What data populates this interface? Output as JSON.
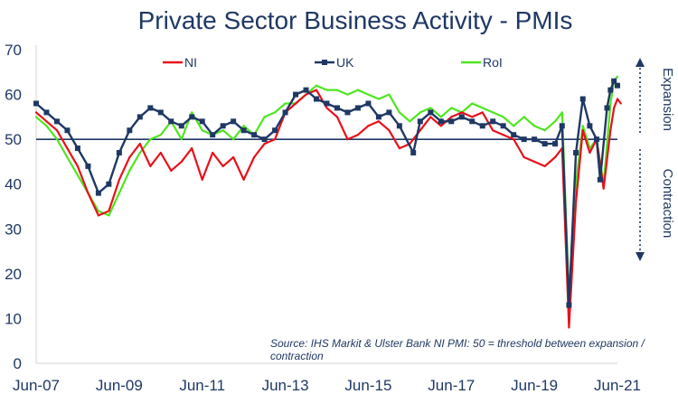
{
  "chart_data": {
    "type": "line",
    "title": "Private Sector Business Activity - PMIs",
    "xlabel": "",
    "ylabel": "",
    "ylim": [
      0,
      70
    ],
    "yticks": [
      0,
      10,
      20,
      30,
      40,
      50,
      60,
      70
    ],
    "x_tick_labels": [
      "Jun-07",
      "Jun-09",
      "Jun-11",
      "Jun-13",
      "Jun-15",
      "Jun-17",
      "Jun-19",
      "Jun-21"
    ],
    "x_range": [
      "Jun-07",
      "Jun-21"
    ],
    "threshold": 50,
    "grid": false,
    "legend_position": "top",
    "series": [
      {
        "name": "NI",
        "color": "#e8101a",
        "marker": "none",
        "points": [
          [
            "Jun-07",
            56
          ],
          [
            "Sep-07",
            54
          ],
          [
            "Dec-07",
            52
          ],
          [
            "Mar-08",
            48
          ],
          [
            "Jun-08",
            44
          ],
          [
            "Sep-08",
            38
          ],
          [
            "Dec-08",
            33
          ],
          [
            "Mar-09",
            34
          ],
          [
            "Jun-09",
            41
          ],
          [
            "Sep-09",
            46
          ],
          [
            "Dec-09",
            49
          ],
          [
            "Mar-10",
            44
          ],
          [
            "Jun-10",
            47
          ],
          [
            "Sep-10",
            43
          ],
          [
            "Dec-10",
            45
          ],
          [
            "Mar-11",
            48
          ],
          [
            "Jun-11",
            41
          ],
          [
            "Sep-11",
            47
          ],
          [
            "Dec-11",
            44
          ],
          [
            "Mar-12",
            46
          ],
          [
            "Jun-12",
            41
          ],
          [
            "Sep-12",
            46
          ],
          [
            "Dec-12",
            49
          ],
          [
            "Mar-13",
            50
          ],
          [
            "Jun-13",
            56
          ],
          [
            "Sep-13",
            58
          ],
          [
            "Dec-13",
            60
          ],
          [
            "Mar-14",
            61
          ],
          [
            "Jun-14",
            57
          ],
          [
            "Sep-14",
            55
          ],
          [
            "Dec-14",
            50
          ],
          [
            "Mar-15",
            51
          ],
          [
            "Jun-15",
            53
          ],
          [
            "Sep-15",
            54
          ],
          [
            "Dec-15",
            52
          ],
          [
            "Mar-16",
            48
          ],
          [
            "Jun-16",
            49
          ],
          [
            "Sep-16",
            52
          ],
          [
            "Dec-16",
            55
          ],
          [
            "Mar-17",
            53
          ],
          [
            "Jun-17",
            55
          ],
          [
            "Sep-17",
            56
          ],
          [
            "Dec-17",
            55
          ],
          [
            "Mar-18",
            56
          ],
          [
            "Jun-18",
            52
          ],
          [
            "Sep-18",
            51
          ],
          [
            "Dec-18",
            50
          ],
          [
            "Mar-19",
            46
          ],
          [
            "Jun-19",
            45
          ],
          [
            "Sep-19",
            44
          ],
          [
            "Dec-19",
            46
          ],
          [
            "Feb-20",
            48
          ],
          [
            "Apr-20",
            8
          ],
          [
            "Jun-20",
            36
          ],
          [
            "Aug-20",
            52
          ],
          [
            "Oct-20",
            47
          ],
          [
            "Dec-20",
            50
          ],
          [
            "Feb-21",
            39
          ],
          [
            "Apr-21",
            52
          ],
          [
            "May-21",
            57
          ],
          [
            "Jun-21",
            59
          ],
          [
            "Jul-21",
            58
          ]
        ]
      },
      {
        "name": "UK",
        "color": "#1f3864",
        "marker": "square",
        "points": [
          [
            "Jun-07",
            58
          ],
          [
            "Sep-07",
            56
          ],
          [
            "Dec-07",
            54
          ],
          [
            "Mar-08",
            52
          ],
          [
            "Jun-08",
            48
          ],
          [
            "Sep-08",
            44
          ],
          [
            "Dec-08",
            38
          ],
          [
            "Mar-09",
            40
          ],
          [
            "Jun-09",
            47
          ],
          [
            "Sep-09",
            52
          ],
          [
            "Dec-09",
            55
          ],
          [
            "Mar-10",
            57
          ],
          [
            "Jun-10",
            56
          ],
          [
            "Sep-10",
            54
          ],
          [
            "Dec-10",
            53
          ],
          [
            "Mar-11",
            55
          ],
          [
            "Jun-11",
            54
          ],
          [
            "Sep-11",
            51
          ],
          [
            "Dec-11",
            53
          ],
          [
            "Mar-12",
            54
          ],
          [
            "Jun-12",
            52
          ],
          [
            "Sep-12",
            51
          ],
          [
            "Dec-12",
            50
          ],
          [
            "Mar-13",
            52
          ],
          [
            "Jun-13",
            56
          ],
          [
            "Sep-13",
            60
          ],
          [
            "Dec-13",
            61
          ],
          [
            "Mar-14",
            59
          ],
          [
            "Jun-14",
            58
          ],
          [
            "Sep-14",
            57
          ],
          [
            "Dec-14",
            56
          ],
          [
            "Mar-15",
            57
          ],
          [
            "Jun-15",
            58
          ],
          [
            "Sep-15",
            55
          ],
          [
            "Dec-15",
            56
          ],
          [
            "Mar-16",
            53
          ],
          [
            "Jul-16",
            47
          ],
          [
            "Sep-16",
            54
          ],
          [
            "Dec-16",
            56
          ],
          [
            "Mar-17",
            54
          ],
          [
            "Jun-17",
            54
          ],
          [
            "Sep-17",
            55
          ],
          [
            "Dec-17",
            54
          ],
          [
            "Mar-18",
            53
          ],
          [
            "Jun-18",
            54
          ],
          [
            "Sep-18",
            53
          ],
          [
            "Dec-18",
            51
          ],
          [
            "Mar-19",
            50
          ],
          [
            "Jun-19",
            50
          ],
          [
            "Sep-19",
            49
          ],
          [
            "Dec-19",
            49
          ],
          [
            "Feb-20",
            53
          ],
          [
            "Apr-20",
            13
          ],
          [
            "Jun-20",
            47
          ],
          [
            "Aug-20",
            59
          ],
          [
            "Oct-20",
            53
          ],
          [
            "Dec-20",
            50
          ],
          [
            "Jan-21",
            41
          ],
          [
            "Mar-21",
            57
          ],
          [
            "Apr-21",
            61
          ],
          [
            "May-21",
            63
          ],
          [
            "Jun-21",
            62
          ]
        ]
      },
      {
        "name": "RoI",
        "color": "#4ee61e",
        "marker": "none",
        "points": [
          [
            "Jun-07",
            55
          ],
          [
            "Sep-07",
            53
          ],
          [
            "Dec-07",
            50
          ],
          [
            "Mar-08",
            46
          ],
          [
            "Jun-08",
            42
          ],
          [
            "Sep-08",
            38
          ],
          [
            "Dec-08",
            34
          ],
          [
            "Mar-09",
            33
          ],
          [
            "Jun-09",
            38
          ],
          [
            "Sep-09",
            43
          ],
          [
            "Dec-09",
            47
          ],
          [
            "Mar-10",
            50
          ],
          [
            "Jun-10",
            51
          ],
          [
            "Sep-10",
            54
          ],
          [
            "Dec-10",
            50
          ],
          [
            "Mar-11",
            56
          ],
          [
            "Jun-11",
            52
          ],
          [
            "Sep-11",
            51
          ],
          [
            "Dec-11",
            52
          ],
          [
            "Mar-12",
            50
          ],
          [
            "Jun-12",
            53
          ],
          [
            "Sep-12",
            51
          ],
          [
            "Dec-12",
            55
          ],
          [
            "Mar-13",
            56
          ],
          [
            "Jun-13",
            58
          ],
          [
            "Sep-13",
            58
          ],
          [
            "Dec-13",
            60
          ],
          [
            "Mar-14",
            62
          ],
          [
            "Jun-14",
            61
          ],
          [
            "Sep-14",
            61
          ],
          [
            "Dec-14",
            60
          ],
          [
            "Mar-15",
            61
          ],
          [
            "Jun-15",
            60
          ],
          [
            "Sep-15",
            59
          ],
          [
            "Dec-15",
            60
          ],
          [
            "Mar-16",
            56
          ],
          [
            "Jun-16",
            54
          ],
          [
            "Sep-16",
            56
          ],
          [
            "Dec-16",
            57
          ],
          [
            "Mar-17",
            55
          ],
          [
            "Jun-17",
            57
          ],
          [
            "Sep-17",
            56
          ],
          [
            "Dec-17",
            58
          ],
          [
            "Mar-18",
            57
          ],
          [
            "Jun-18",
            56
          ],
          [
            "Sep-18",
            55
          ],
          [
            "Dec-18",
            53
          ],
          [
            "Mar-19",
            55
          ],
          [
            "Jun-19",
            53
          ],
          [
            "Sep-19",
            52
          ],
          [
            "Dec-19",
            54
          ],
          [
            "Feb-20",
            56
          ],
          [
            "Apr-20",
            15
          ],
          [
            "Jun-20",
            40
          ],
          [
            "Aug-20",
            53
          ],
          [
            "Oct-20",
            48
          ],
          [
            "Dec-20",
            50
          ],
          [
            "Feb-21",
            40
          ],
          [
            "Apr-21",
            58
          ],
          [
            "May-21",
            63
          ],
          [
            "Jun-21",
            64
          ]
        ]
      }
    ],
    "side_labels": [
      "Expansion",
      "Contraction"
    ],
    "source": "Source: IHS Markit & Ulster Bank NI PMI: 50 = threshold between expansion / contraction"
  }
}
